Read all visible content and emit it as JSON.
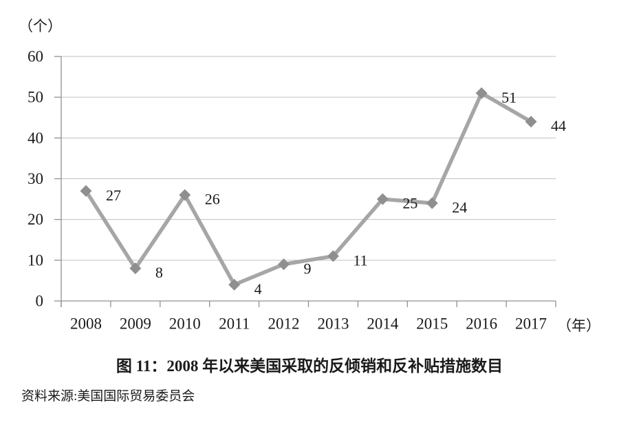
{
  "figure": {
    "y_unit_label": "（个）",
    "x_unit_label": "（年）",
    "title": "图 11：2008 年以来美国采取的反倾销和反补贴措施数目",
    "source": "资料来源:美国国际贸易委员会"
  },
  "chart_data": {
    "type": "line",
    "categories": [
      "2008",
      "2009",
      "2010",
      "2011",
      "2012",
      "2013",
      "2014",
      "2015",
      "2016",
      "2017"
    ],
    "values": [
      27,
      8,
      26,
      4,
      9,
      11,
      25,
      24,
      51,
      44
    ],
    "title": "图 11：2008 年以来美国采取的反倾销和反补贴措施数目",
    "xlabel": "（年）",
    "ylabel": "（个）",
    "ylim": [
      0,
      60
    ],
    "ytick_step": 10,
    "grid": true,
    "legend": "none",
    "marker": "diamond",
    "colors": {
      "line": "#a6a6a6",
      "marker": "#8f8f8f",
      "gridline": "#c0c0c0",
      "axis": "#909090",
      "text": "#1a1a1a"
    }
  }
}
